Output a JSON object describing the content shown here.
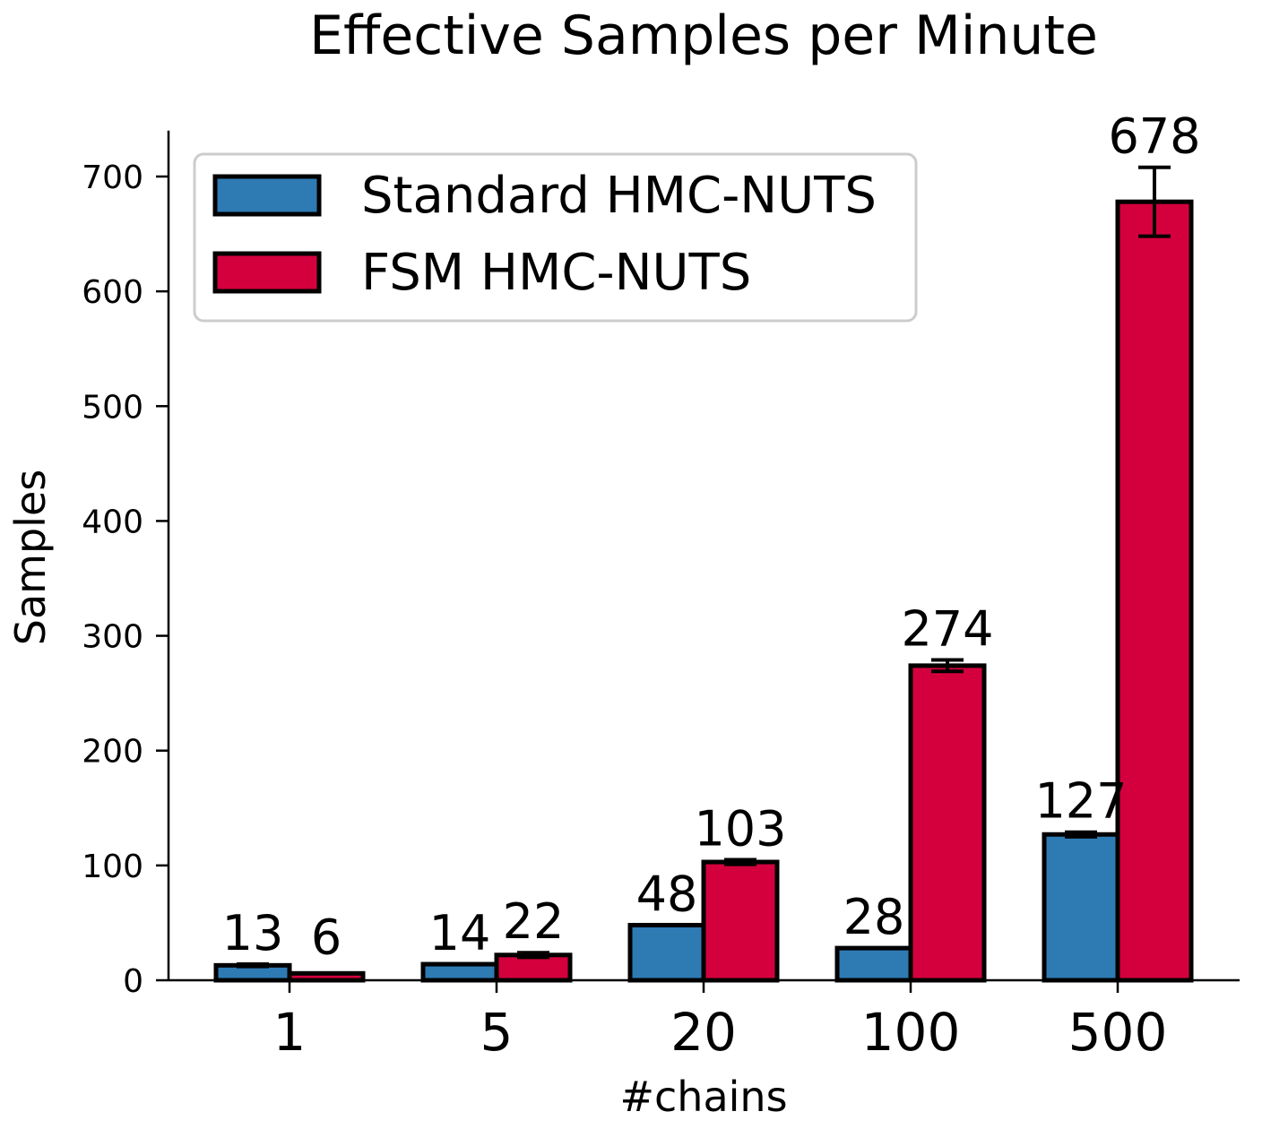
{
  "chart_data": {
    "type": "bar",
    "title": "Effective Samples per Minute",
    "xlabel": "#chains",
    "ylabel": "Samples",
    "categories": [
      "1",
      "5",
      "20",
      "100",
      "500"
    ],
    "ylim": [
      0,
      740
    ],
    "yticks": [
      0,
      100,
      200,
      300,
      400,
      500,
      600,
      700
    ],
    "legend_position": "upper-left",
    "grid": false,
    "series": [
      {
        "name": "Standard HMC-NUTS",
        "color": "#2e7bb4",
        "values": [
          13,
          14,
          48,
          28,
          127
        ],
        "labels": [
          "13",
          "14",
          "48",
          "28",
          "127"
        ],
        "errors": [
          1,
          0,
          0,
          0,
          2
        ]
      },
      {
        "name": "FSM HMC-NUTS",
        "color": "#d4003e",
        "values": [
          6,
          22,
          103,
          274,
          678
        ],
        "labels": [
          "6",
          "22",
          "103",
          "274",
          "678"
        ],
        "errors": [
          0,
          2,
          2,
          5,
          30
        ]
      }
    ]
  }
}
